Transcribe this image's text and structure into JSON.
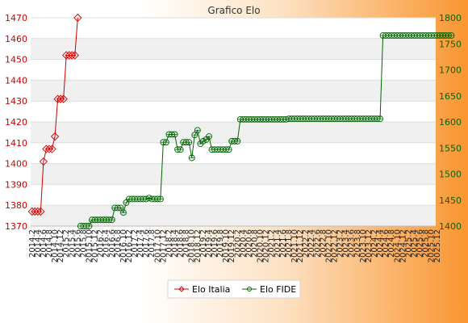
{
  "chart_data": {
    "type": "line",
    "title": "Grafico Elo",
    "grid": true,
    "legend_placement": "bottom",
    "axes": {
      "left": {
        "ylim": [
          1370,
          1470
        ],
        "ticks": [
          1370,
          1380,
          1390,
          1400,
          1410,
          1420,
          1430,
          1440,
          1450,
          1460,
          1470
        ],
        "color": "#cc0000"
      },
      "right": {
        "ylim": [
          1400,
          1800
        ],
        "ticks": [
          1400,
          1450,
          1500,
          1550,
          1600,
          1650,
          1700,
          1750,
          1800
        ],
        "color": "#006600"
      }
    },
    "x_count": 142,
    "x_tick_labels": [
      "2014.2",
      "2014.4",
      "2014.6",
      "2014.8",
      "2014.10",
      "2014.12",
      "2015.2",
      "2015.4",
      "2015.6",
      "2015.8",
      "2015.10",
      "2015.12",
      "2016.2",
      "2016.4",
      "2016.6",
      "2016.8",
      "2016.10",
      "2016.12",
      "2017.2",
      "2017.4",
      "2017.6",
      "2017.8",
      "2017.10",
      "2017.12",
      "2018.2",
      "2018.4",
      "2018.6",
      "2018.8",
      "2018.10",
      "2018.12",
      "2019.2",
      "2019.4",
      "2019.6",
      "2019.8",
      "2019.10",
      "2019.12",
      "2020.2",
      "2020.4",
      "2020.6",
      "2020.8",
      "2020.10",
      "2020.12",
      "2021.2",
      "2021.4",
      "2021.6",
      "2021.8",
      "2021.10",
      "2021.12",
      "2022.2",
      "2022.4",
      "2022.6",
      "2022.8",
      "2022.10",
      "2022.12",
      "2023.2",
      "2023.4",
      "2023.6",
      "2023.8",
      "2023.10",
      "2023.12",
      "2024.2",
      "2024.4",
      "2024.6",
      "2024.8",
      "2024.10",
      "2024.12",
      "2025.2",
      "2025.4",
      "2025.6",
      "2025.8",
      "2025.10",
      "2025.12"
    ],
    "series": [
      {
        "name": "Elo Italia",
        "axis": "left",
        "color": "#cc0000",
        "marker": "diamond",
        "values": [
          1377,
          1377,
          1377,
          1377,
          1401,
          1407,
          1407,
          1407,
          1413,
          1431,
          1431,
          1431,
          1452,
          1452,
          1452,
          1452,
          1470
        ]
      },
      {
        "name": "Elo FIDE",
        "axis": "right",
        "color": "#006600",
        "marker": "circle",
        "start_index": 17,
        "values": [
          1400,
          1400,
          1400,
          1400,
          1412,
          1412,
          1412,
          1412,
          1412,
          1412,
          1412,
          1412,
          1435,
          1435,
          1435,
          1426,
          1445,
          1452,
          1452,
          1452,
          1452,
          1452,
          1452,
          1452,
          1454,
          1452,
          1452,
          1452,
          1452,
          1561,
          1561,
          1576,
          1576,
          1576,
          1547,
          1547,
          1561,
          1561,
          1561,
          1531,
          1575,
          1584,
          1558,
          1563,
          1566,
          1572,
          1547,
          1547,
          1547,
          1547,
          1547,
          1547,
          1547,
          1563,
          1563,
          1563,
          1605,
          1605,
          1605,
          1605,
          1605,
          1605,
          1605,
          1605,
          1605,
          1605,
          1605,
          1605,
          1605,
          1605,
          1605,
          1605,
          1605,
          1606,
          1606,
          1606,
          1606,
          1606,
          1606,
          1606,
          1606,
          1606,
          1606,
          1606,
          1606,
          1606,
          1606,
          1606,
          1606,
          1606,
          1606,
          1606,
          1606,
          1606,
          1606,
          1606,
          1606,
          1606,
          1606,
          1606,
          1606,
          1606,
          1606,
          1606,
          1606,
          1606,
          1766,
          1766,
          1766,
          1766,
          1766,
          1766,
          1766,
          1766,
          1766,
          1766,
          1766,
          1766,
          1766,
          1766,
          1766,
          1766,
          1766,
          1766,
          1766,
          1766,
          1766,
          1766,
          1766,
          1766,
          1766
        ]
      }
    ]
  }
}
